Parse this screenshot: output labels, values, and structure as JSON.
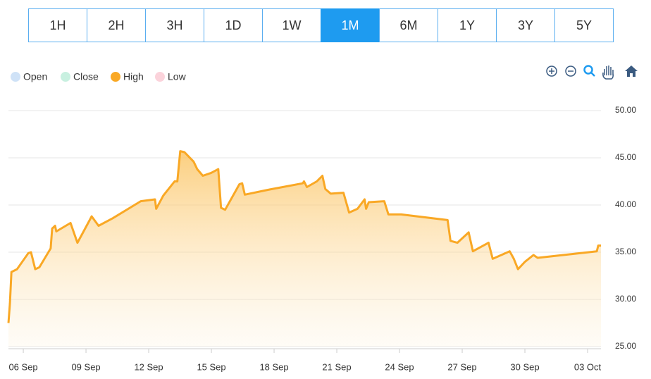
{
  "range_buttons": [
    "1H",
    "2H",
    "3H",
    "1D",
    "1W",
    "1M",
    "6M",
    "1Y",
    "3Y",
    "5Y"
  ],
  "selected_range": "1M",
  "chart_data": {
    "type": "area",
    "legend": [
      {
        "name": "Open",
        "color": "#cfe2f7",
        "active": false
      },
      {
        "name": "Close",
        "color": "#c8f0e0",
        "active": false
      },
      {
        "name": "High",
        "color": "#f9a825",
        "active": true
      },
      {
        "name": "Low",
        "color": "#fbd3db",
        "active": false
      }
    ],
    "x": [
      5.29,
      5.36,
      5.43,
      5.7,
      6.24,
      6.37,
      6.57,
      6.77,
      7.31,
      7.38,
      7.52,
      7.58,
      8.26,
      8.59,
      8.86,
      9.27,
      9.6,
      10.28,
      11.62,
      12.3,
      12.36,
      12.7,
      13.24,
      13.37,
      13.51,
      13.71,
      14.15,
      14.32,
      14.59,
      14.99,
      15.33,
      15.46,
      15.66,
      16.34,
      16.47,
      16.6,
      17.68,
      19.37,
      19.43,
      19.57,
      20.04,
      20.31,
      20.45,
      20.71,
      21.32,
      21.59,
      21.99,
      22.33,
      22.4,
      22.53,
      23.27,
      23.47,
      24.08,
      26.3,
      26.44,
      26.77,
      27.31,
      27.51,
      28.26,
      28.46,
      29.27,
      29.47,
      29.67,
      30.01,
      30.41,
      30.61,
      33.44,
      33.51,
      33.64
    ],
    "series": [
      {
        "name": "High",
        "color": "#f9a825",
        "values": [
          27.5,
          29.6,
          32.9,
          33.2,
          34.9,
          35.0,
          33.2,
          33.4,
          35.4,
          37.5,
          37.8,
          37.2,
          38.1,
          36.0,
          37.1,
          38.8,
          37.8,
          38.6,
          40.4,
          40.6,
          39.6,
          41.0,
          42.5,
          42.5,
          45.7,
          45.6,
          44.6,
          43.8,
          43.1,
          43.4,
          43.8,
          39.7,
          39.5,
          42.2,
          42.3,
          41.1,
          41.6,
          42.3,
          42.5,
          41.9,
          42.5,
          43.1,
          41.7,
          41.2,
          41.3,
          39.2,
          39.6,
          40.6,
          39.6,
          40.3,
          40.4,
          39.0,
          39.0,
          38.4,
          36.2,
          36.0,
          37.1,
          35.1,
          36.0,
          34.3,
          35.1,
          34.3,
          33.2,
          34.0,
          34.7,
          34.4,
          35.1,
          35.7,
          35.7
        ]
      }
    ],
    "xlim": [
      5.29,
      33.64
    ],
    "xticks": [
      {
        "value": 6,
        "label": "06 Sep"
      },
      {
        "value": 9,
        "label": "09 Sep"
      },
      {
        "value": 12,
        "label": "12 Sep"
      },
      {
        "value": 15,
        "label": "15 Sep"
      },
      {
        "value": 18,
        "label": "18 Sep"
      },
      {
        "value": 21,
        "label": "21 Sep"
      },
      {
        "value": 24,
        "label": "24 Sep"
      },
      {
        "value": 27,
        "label": "27 Sep"
      },
      {
        "value": 30,
        "label": "30 Sep"
      },
      {
        "value": 33,
        "label": "03 Oct"
      }
    ],
    "ylim": [
      25,
      50
    ],
    "yticks": [
      {
        "value": 25,
        "label": "25.00"
      },
      {
        "value": 30,
        "label": "30.00"
      },
      {
        "value": 35,
        "label": "35.00"
      },
      {
        "value": 40,
        "label": "40.00"
      },
      {
        "value": 45,
        "label": "45.00"
      },
      {
        "value": 50,
        "label": "50.00"
      }
    ],
    "grid": true
  }
}
